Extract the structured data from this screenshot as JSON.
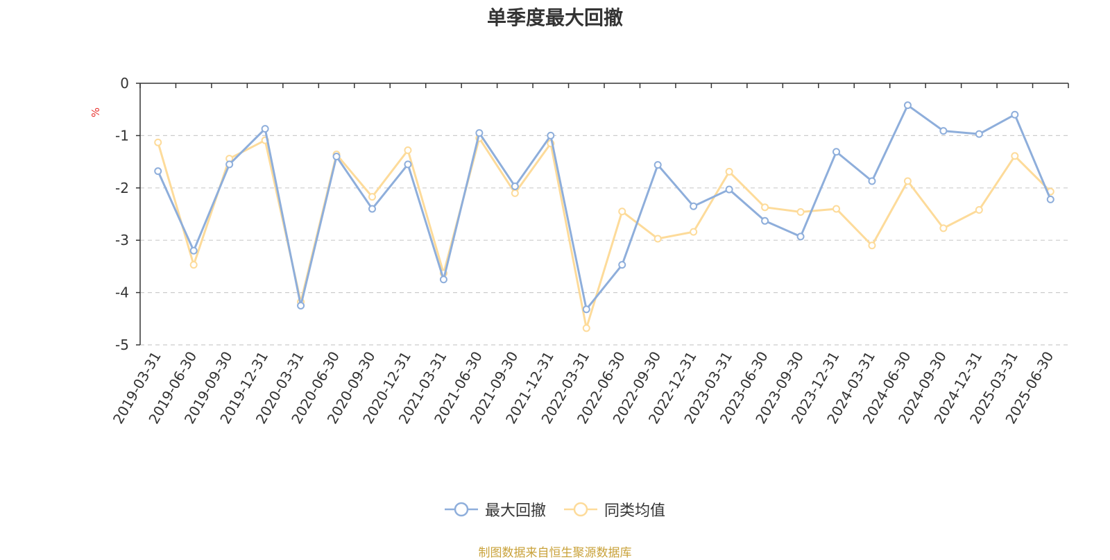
{
  "title": "单季度最大回撤",
  "source_note": "制图数据来自恒生聚源数据库",
  "colors": {
    "series_1": "#8eaedb",
    "series_2": "#fddb9a",
    "unit_label": "#e8322e",
    "source_note": "#c9a23a",
    "axis": "#333333",
    "grid": "#cccccc"
  },
  "chart_data": {
    "type": "line",
    "title": "单季度最大回撤",
    "ylabel": "%",
    "ylim": [
      -5,
      0
    ],
    "yticks": [
      "0",
      "-1",
      "-2",
      "-3",
      "-4",
      "-5"
    ],
    "grid": "horizontal dashed",
    "legend_position": "bottom-center",
    "categories": [
      "2019-03-31",
      "2019-06-30",
      "2019-09-30",
      "2019-12-31",
      "2020-03-31",
      "2020-06-30",
      "2020-09-30",
      "2020-12-31",
      "2021-03-31",
      "2021-06-30",
      "2021-09-30",
      "2021-12-31",
      "2022-03-31",
      "2022-06-30",
      "2022-09-30",
      "2022-12-31",
      "2023-03-31",
      "2023-06-30",
      "2023-09-30",
      "2023-12-31",
      "2024-03-31",
      "2024-06-30",
      "2024-09-30",
      "2024-12-31",
      "2025-03-31",
      "2025-06-30"
    ],
    "series": [
      {
        "name": "最大回撤",
        "values": [
          -1.68,
          -3.2,
          -1.55,
          -0.87,
          -4.25,
          -1.4,
          -2.4,
          -1.55,
          -3.75,
          -0.95,
          -1.97,
          -1.0,
          -4.32,
          -3.47,
          -1.56,
          -2.35,
          -2.03,
          -2.63,
          -2.93,
          -1.31,
          -1.87,
          -0.42,
          -0.91,
          -0.97,
          -0.6,
          -2.22
        ]
      },
      {
        "name": "同类均值",
        "values": [
          -1.13,
          -3.47,
          -1.44,
          -1.09,
          -4.18,
          -1.36,
          -2.17,
          -1.28,
          -3.63,
          -1.05,
          -2.1,
          -1.15,
          -4.68,
          -2.45,
          -2.97,
          -2.84,
          -1.69,
          -2.37,
          -2.46,
          -2.4,
          -3.1,
          -1.87,
          -2.77,
          -2.42,
          -1.39,
          -2.07
        ]
      }
    ]
  }
}
